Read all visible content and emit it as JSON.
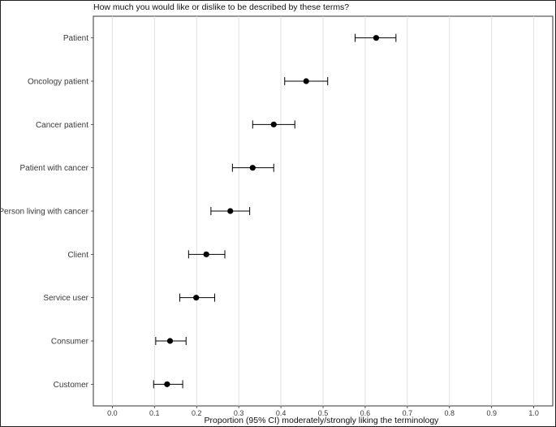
{
  "chart_data": {
    "type": "scatter",
    "subtype": "point-estimate-with-95ci",
    "title": "How much you would like or dislike to be described by these terms?",
    "xlabel": "Proportion (95% CI) moderately/strongly liking the terminology",
    "ylabel": "",
    "xlim": [
      -0.045,
      1.045
    ],
    "x_ticks": [
      "0.0",
      "0.1",
      "0.2",
      "0.3",
      "0.4",
      "0.5",
      "0.6",
      "0.7",
      "0.8",
      "0.9",
      "1.0"
    ],
    "grid": "vertical major",
    "legend": "none",
    "point_color": "#000000",
    "categories": [
      "Patient",
      "Oncology patient",
      "Cancer patient",
      "Patient with cancer",
      "Person living with cancer",
      "Client",
      "Service user",
      "Consumer",
      "Customer"
    ],
    "estimate": [
      0.626,
      0.46,
      0.383,
      0.333,
      0.28,
      0.223,
      0.199,
      0.137,
      0.13
    ],
    "ci_lower": [
      0.576,
      0.409,
      0.333,
      0.285,
      0.234,
      0.181,
      0.16,
      0.103,
      0.098
    ],
    "ci_upper": [
      0.673,
      0.511,
      0.433,
      0.383,
      0.326,
      0.267,
      0.243,
      0.175,
      0.167
    ]
  }
}
